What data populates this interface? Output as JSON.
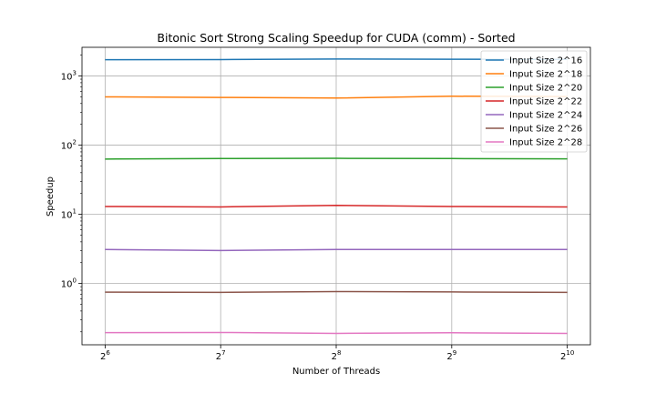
{
  "chart_data": {
    "type": "line",
    "title": "Bitonic Sort Strong Scaling Speedup for CUDA (comm) - Sorted",
    "xlabel": "Number of Threads",
    "ylabel": "Speedup",
    "x": [
      64,
      128,
      256,
      512,
      1024
    ],
    "x_ticks": [
      {
        "base": "2",
        "exp": "6"
      },
      {
        "base": "2",
        "exp": "7"
      },
      {
        "base": "2",
        "exp": "8"
      },
      {
        "base": "2",
        "exp": "9"
      },
      {
        "base": "2",
        "exp": "10"
      }
    ],
    "y_scale": "log",
    "ylim": [
      0.13,
      2600
    ],
    "y_ticks": [
      {
        "value": 1,
        "base": "10",
        "exp": "0"
      },
      {
        "value": 10,
        "base": "10",
        "exp": "1"
      },
      {
        "value": 100,
        "base": "10",
        "exp": "2"
      },
      {
        "value": 1000,
        "base": "10",
        "exp": "3"
      }
    ],
    "grid": true,
    "legend_position": "top-right",
    "series": [
      {
        "name": "Input Size 2^16",
        "color": "#1f77b4",
        "values": [
          1720,
          1730,
          1760,
          1750,
          1740
        ]
      },
      {
        "name": "Input Size 2^18",
        "color": "#ff7f0e",
        "values": [
          500,
          490,
          480,
          510,
          505
        ]
      },
      {
        "name": "Input Size 2^20",
        "color": "#2ca02c",
        "values": [
          63,
          64,
          64.5,
          64,
          63.5
        ]
      },
      {
        "name": "Input Size 2^22",
        "color": "#d62728",
        "values": [
          13,
          12.8,
          13.5,
          13,
          12.8
        ]
      },
      {
        "name": "Input Size 2^24",
        "color": "#9467bd",
        "values": [
          3.1,
          3.0,
          3.1,
          3.1,
          3.1
        ]
      },
      {
        "name": "Input Size 2^26",
        "color": "#8c564b",
        "values": [
          0.75,
          0.745,
          0.765,
          0.755,
          0.745
        ]
      },
      {
        "name": "Input Size 2^28",
        "color": "#e377c2",
        "values": [
          0.195,
          0.196,
          0.19,
          0.194,
          0.19
        ]
      }
    ]
  }
}
